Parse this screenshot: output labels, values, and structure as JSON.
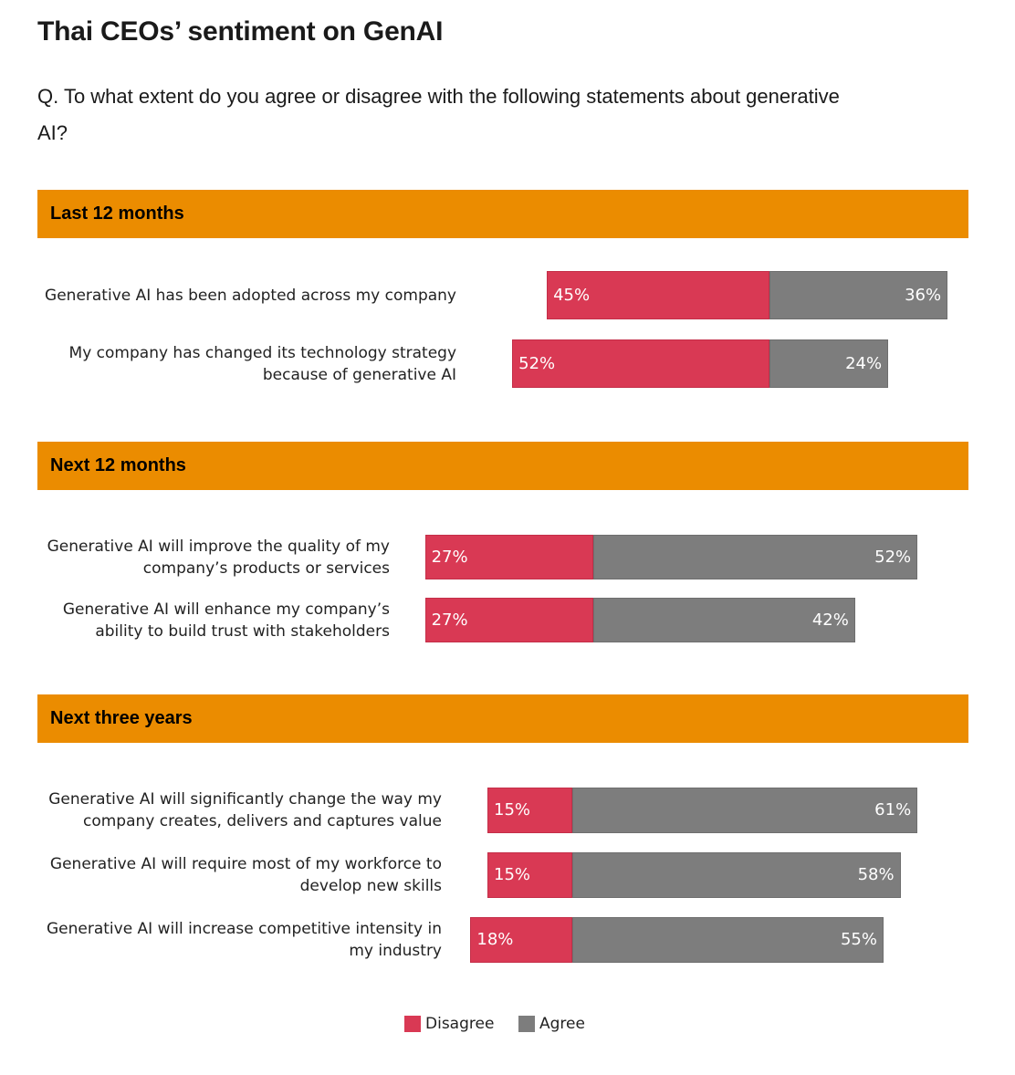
{
  "chart_data": {
    "type": "bar",
    "orientation": "horizontal-diverging",
    "title": "Thai CEOs’ sentiment on GenAI",
    "question": "Q. To what extent do you agree or disagree with the following statements about generative AI?",
    "legend": [
      {
        "name": "Disagree",
        "color": "#d93954"
      },
      {
        "name": "Agree",
        "color": "#7d7d7d"
      }
    ],
    "legend_position": "bottom-center",
    "groups": [
      {
        "name": "Last 12 months",
        "items": [
          {
            "label": [
              "Generative AI has been adopted across my company"
            ],
            "disagree": 45,
            "agree": 36,
            "disagree_label": "45%",
            "agree_label": "36%"
          },
          {
            "label": [
              "My company has changed its technology strategy",
              "because of generative AI"
            ],
            "disagree": 52,
            "agree": 24,
            "disagree_label": "52%",
            "agree_label": "24%"
          }
        ]
      },
      {
        "name": "Next 12 months",
        "items": [
          {
            "label": [
              "Generative AI will improve the quality of my",
              "company’s products or services"
            ],
            "disagree": 27,
            "agree": 52,
            "disagree_label": "27%",
            "agree_label": "52%"
          },
          {
            "label": [
              "Generative AI will enhance my company’s",
              "ability to build trust with stakeholders"
            ],
            "disagree": 27,
            "agree": 42,
            "disagree_label": "27%",
            "agree_label": "42%"
          }
        ]
      },
      {
        "name": "Next three years",
        "items": [
          {
            "label": [
              "Generative AI will significantly change the way my",
              "company creates, delivers and captures value"
            ],
            "disagree": 15,
            "agree": 61,
            "disagree_label": "15%",
            "agree_label": "61%"
          },
          {
            "label": [
              "Generative AI will require most of my workforce to",
              "develop new skills"
            ],
            "disagree": 15,
            "agree": 58,
            "disagree_label": "15%",
            "agree_label": "58%"
          },
          {
            "label": [
              "Generative AI will increase competitive intensity in",
              "my industry"
            ],
            "disagree": 18,
            "agree": 55,
            "disagree_label": "18%",
            "agree_label": "55%"
          }
        ]
      }
    ]
  }
}
